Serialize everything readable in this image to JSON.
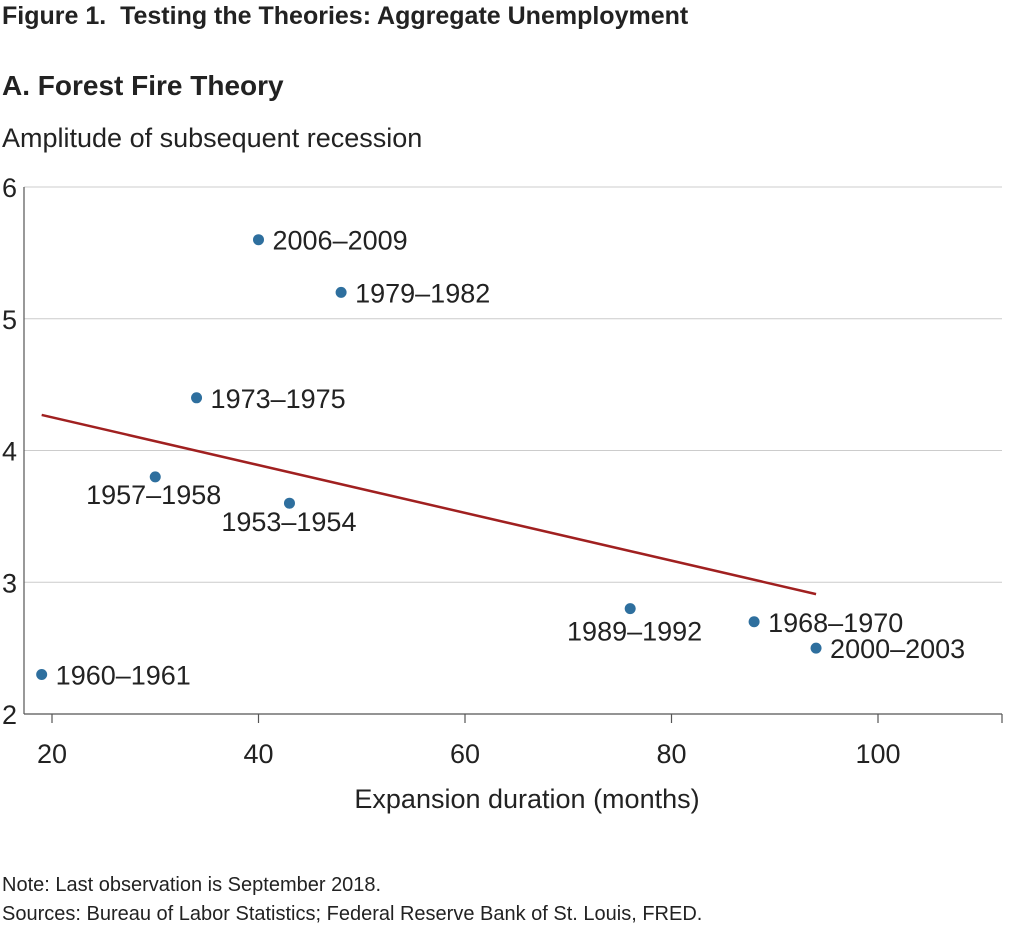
{
  "figure_title": "Figure 1.  Testing the Theories: Aggregate Unemployment",
  "panel_title": "A. Forest Fire Theory",
  "note": "Note: Last observation is September 2018.",
  "sources": "Sources: Bureau of Labor Statistics; Federal Reserve Bank of St. Louis, FRED.",
  "chart_data": {
    "type": "scatter",
    "title": "A. Forest Fire Theory",
    "xlabel": "Expansion duration (months)",
    "ylabel": "Amplitude of subsequent recession",
    "xlim": [
      18,
      112
    ],
    "ylim": [
      2,
      6
    ],
    "xticks": [
      20,
      40,
      60,
      80,
      100
    ],
    "yticks": [
      2,
      3,
      4,
      5,
      6
    ],
    "grid": "horizontal",
    "point_color": "#2e6f9e",
    "trend_color": "#a02020",
    "points": [
      {
        "label": "2006–2009",
        "x": 40,
        "y": 5.6
      },
      {
        "label": "1979–1982",
        "x": 48,
        "y": 5.2
      },
      {
        "label": "1973–1975",
        "x": 34,
        "y": 4.4
      },
      {
        "label": "1957–1958",
        "x": 30,
        "y": 3.8
      },
      {
        "label": "1953–1954",
        "x": 43,
        "y": 3.6
      },
      {
        "label": "1989–1992",
        "x": 76,
        "y": 2.8
      },
      {
        "label": "1968–1970",
        "x": 88,
        "y": 2.7
      },
      {
        "label": "2000–2003",
        "x": 94,
        "y": 2.5
      },
      {
        "label": "1960–1961",
        "x": 19,
        "y": 2.3
      }
    ],
    "trend_line": {
      "x": [
        19,
        94
      ],
      "y": [
        4.27,
        2.91
      ]
    }
  }
}
